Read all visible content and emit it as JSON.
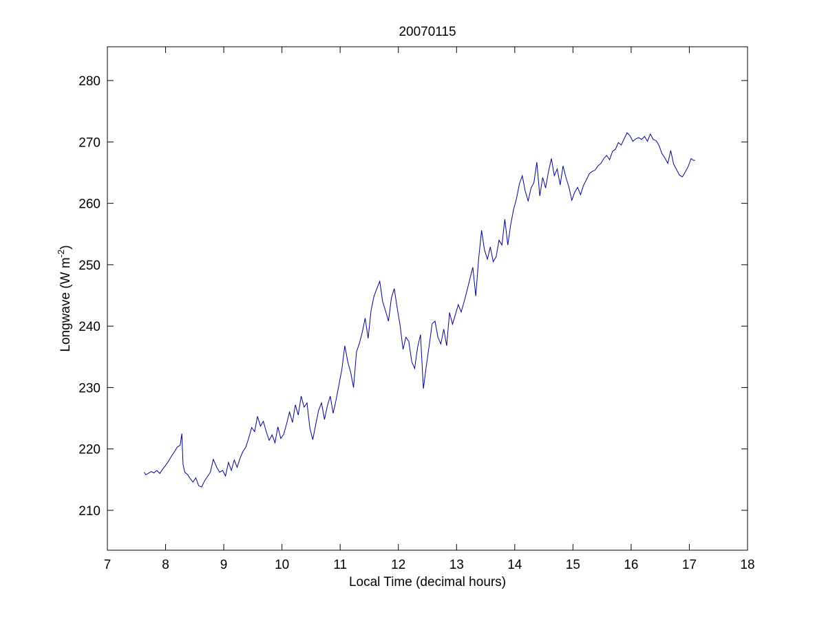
{
  "chart_data": {
    "type": "line",
    "title": "20070115",
    "xlabel": "Local Time (decimal hours)",
    "ylabel_main": "Longwave (W m",
    "ylabel_sup": "-2",
    "ylabel_end": ")",
    "xlim": [
      7,
      18
    ],
    "ylim": [
      203.5,
      285.5
    ],
    "xticks": [
      7,
      8,
      9,
      10,
      11,
      12,
      13,
      14,
      15,
      16,
      17,
      18
    ],
    "yticks": [
      210,
      220,
      230,
      240,
      250,
      260,
      270,
      280
    ],
    "grid": false,
    "line_color": "#00008b",
    "series": [
      {
        "x": [
          7.63,
          7.66,
          7.7,
          7.75,
          7.8,
          7.85,
          7.9,
          7.95,
          8.0,
          8.05,
          8.1,
          8.15,
          8.2,
          8.25,
          8.28,
          8.3,
          8.33,
          8.38,
          8.42,
          8.47,
          8.52,
          8.57,
          8.62,
          8.67,
          8.72,
          8.77,
          8.82,
          8.88,
          8.93,
          8.98,
          9.03,
          9.08,
          9.13,
          9.18,
          9.23,
          9.28,
          9.33,
          9.38,
          9.43,
          9.48,
          9.53,
          9.58,
          9.63,
          9.68,
          9.73,
          9.78,
          9.83,
          9.88,
          9.93,
          9.98,
          10.03,
          10.08,
          10.13,
          10.18,
          10.23,
          10.28,
          10.33,
          10.38,
          10.43,
          10.48,
          10.53,
          10.58,
          10.63,
          10.68,
          10.73,
          10.78,
          10.83,
          10.88,
          10.93,
          10.98,
          11.03,
          11.08,
          11.13,
          11.18,
          11.23,
          11.28,
          11.33,
          11.38,
          11.43,
          11.48,
          11.53,
          11.58,
          11.63,
          11.68,
          11.73,
          11.78,
          11.83,
          11.88,
          11.93,
          11.98,
          12.03,
          12.08,
          12.13,
          12.18,
          12.23,
          12.28,
          12.33,
          12.38,
          12.43,
          12.48,
          12.53,
          12.58,
          12.63,
          12.68,
          12.73,
          12.78,
          12.83,
          12.88,
          12.93,
          12.98,
          13.03,
          13.08,
          13.13,
          13.18,
          13.23,
          13.28,
          13.33,
          13.38,
          13.43,
          13.48,
          13.53,
          13.58,
          13.63,
          13.68,
          13.73,
          13.78,
          13.83,
          13.88,
          13.93,
          13.98,
          14.03,
          14.08,
          14.13,
          14.18,
          14.23,
          14.28,
          14.33,
          14.38,
          14.43,
          14.48,
          14.53,
          14.58,
          14.63,
          14.68,
          14.73,
          14.78,
          14.83,
          14.88,
          14.93,
          14.98,
          15.03,
          15.08,
          15.13,
          15.18,
          15.23,
          15.28,
          15.33,
          15.38,
          15.43,
          15.48,
          15.53,
          15.58,
          15.63,
          15.68,
          15.73,
          15.78,
          15.83,
          15.88,
          15.93,
          15.98,
          16.03,
          16.08,
          16.13,
          16.18,
          16.23,
          16.28,
          16.33,
          16.38,
          16.43,
          16.48,
          16.53,
          16.58,
          16.63,
          16.68,
          16.73,
          16.78,
          16.83,
          16.88,
          16.93,
          16.98,
          17.03,
          17.07,
          17.1
        ],
        "y": [
          216.2,
          215.8,
          216.0,
          216.3,
          216.1,
          216.5,
          216.0,
          216.7,
          217.3,
          218.0,
          218.8,
          219.5,
          220.3,
          220.6,
          222.5,
          217.5,
          216.2,
          215.8,
          215.2,
          214.6,
          215.3,
          214.0,
          213.8,
          214.8,
          215.5,
          216.2,
          218.3,
          217.0,
          216.2,
          216.5,
          215.6,
          217.8,
          216.5,
          218.2,
          217.0,
          218.5,
          219.6,
          220.3,
          221.8,
          223.5,
          222.8,
          225.3,
          223.7,
          224.5,
          222.8,
          221.4,
          222.3,
          221.0,
          223.6,
          221.7,
          222.4,
          224.1,
          226.0,
          224.3,
          227.2,
          225.5,
          228.6,
          226.8,
          227.5,
          223.4,
          221.5,
          224.0,
          226.3,
          227.5,
          224.8,
          227.0,
          228.6,
          225.8,
          228.0,
          230.5,
          233.0,
          236.8,
          234.2,
          232.5,
          230.0,
          235.8,
          237.2,
          239.0,
          241.3,
          238.0,
          242.5,
          244.8,
          246.1,
          247.3,
          244.0,
          242.5,
          240.8,
          244.6,
          246.1,
          243.0,
          240.1,
          236.2,
          238.2,
          237.5,
          234.2,
          233.1,
          236.5,
          238.6,
          229.8,
          233.5,
          236.8,
          240.4,
          240.8,
          238.2,
          237.1,
          239.5,
          236.8,
          242.2,
          240.3,
          241.9,
          243.5,
          242.3,
          244.0,
          245.8,
          247.7,
          249.6,
          244.9,
          251.0,
          255.6,
          252.4,
          250.9,
          252.9,
          250.5,
          251.3,
          254.0,
          253.2,
          257.4,
          253.2,
          256.5,
          259.0,
          260.8,
          263.2,
          264.5,
          262.0,
          260.4,
          262.5,
          263.4,
          266.7,
          261.2,
          264.2,
          262.5,
          265.2,
          267.3,
          264.5,
          265.6,
          263.0,
          266.1,
          264.2,
          262.7,
          260.5,
          261.8,
          262.6,
          261.4,
          262.9,
          263.8,
          264.8,
          265.2,
          265.4,
          266.1,
          266.5,
          267.3,
          267.8,
          267.1,
          268.5,
          268.8,
          269.9,
          269.5,
          270.5,
          271.5,
          271.0,
          270.1,
          270.5,
          270.7,
          270.4,
          270.9,
          270.1,
          271.3,
          270.4,
          270.2,
          269.4,
          268.1,
          267.4,
          266.5,
          268.6,
          266.4,
          265.5,
          264.6,
          264.3,
          265.1,
          266.0,
          267.3,
          267.0,
          267.0
        ]
      }
    ]
  }
}
